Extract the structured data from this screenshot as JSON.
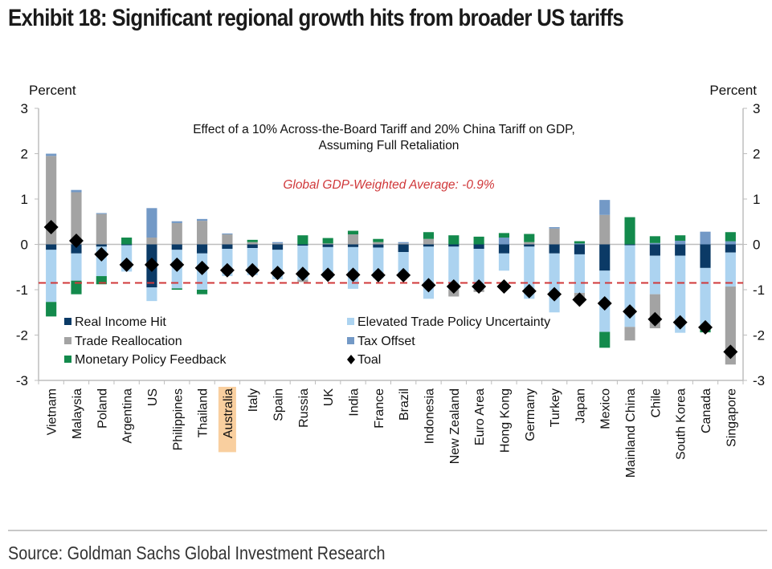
{
  "page": {
    "title": "Exhibit 18: Significant regional growth hits from broader US tariffs",
    "source": "Source: Goldman Sachs Global Investment Research"
  },
  "chart_data": {
    "type": "bar",
    "stacked": true,
    "title": "Effect of a 10% Across-the-Board Tariff and 20% China Tariff on GDP,",
    "subtitle": "Assuming Full Retaliation",
    "ylabel_left": "Percent",
    "ylabel_right": "Percent",
    "ylim": [
      -3,
      3
    ],
    "yticks": [
      3,
      2,
      1,
      0,
      -1,
      -2,
      -3
    ],
    "grid": false,
    "legend_placement": "bottom-left inside plot",
    "highlighted_category": "Australia",
    "highlight_color": "#f9cf9f",
    "reference_line": {
      "label": "Global GDP-Weighted Average: -0.9%",
      "value": -0.85,
      "color": "#d0383a"
    },
    "categories": [
      "Vietnam",
      "Malaysia",
      "Poland",
      "Argentina",
      "US",
      "Philippines",
      "Thailand",
      "Australia",
      "Italy",
      "Spain",
      "Russia",
      "UK",
      "India",
      "France",
      "Brazil",
      "Indonesia",
      "New Zealand",
      "Euro Area",
      "Hong Kong",
      "Germany",
      "Turkey",
      "Japan",
      "Mexico",
      "Mainland China",
      "Chile",
      "South Korea",
      "Canada",
      "Singapore"
    ],
    "series": [
      {
        "name": "Real Income Hit",
        "color": "#0b3a66",
        "marker": "square",
        "values": [
          -0.12,
          -0.2,
          -0.05,
          -0.02,
          -0.95,
          -0.12,
          -0.2,
          -0.1,
          -0.08,
          -0.12,
          -0.03,
          -0.06,
          -0.06,
          -0.07,
          -0.17,
          -0.05,
          -0.05,
          -0.1,
          -0.2,
          -0.05,
          -0.2,
          -0.22,
          -0.58,
          -0.02,
          -0.25,
          -0.25,
          -0.52,
          -0.18
        ]
      },
      {
        "name": "Elevated Trade Policy Uncertainty",
        "color": "#acd3f0",
        "marker": "square",
        "values": [
          -1.15,
          -0.6,
          -0.65,
          -0.58,
          -0.3,
          -0.85,
          -0.8,
          -0.6,
          -0.6,
          -0.65,
          -0.75,
          -0.68,
          -0.92,
          -0.68,
          -0.55,
          -1.15,
          -0.95,
          -0.9,
          -0.38,
          -1.15,
          -1.3,
          -0.85,
          -1.35,
          -1.8,
          -0.85,
          -1.7,
          -1.3,
          -0.75
        ]
      },
      {
        "name": "Trade Reallocation",
        "color": "#a3a3a3",
        "marker": "square",
        "values": [
          1.95,
          1.15,
          0.67,
          0.0,
          0.15,
          0.47,
          0.52,
          0.22,
          0.05,
          0.02,
          -0.05,
          0.02,
          0.22,
          0.05,
          0.02,
          0.12,
          -0.15,
          -0.05,
          0.0,
          0.05,
          0.35,
          -0.15,
          0.65,
          -0.3,
          -0.75,
          0.0,
          0.0,
          -1.72
        ]
      },
      {
        "name": "Tax Offset",
        "color": "#7399c6",
        "marker": "square",
        "values": [
          0.05,
          0.05,
          0.02,
          0.0,
          0.65,
          0.04,
          0.04,
          0.02,
          0.0,
          0.03,
          0.0,
          0.0,
          0.0,
          0.0,
          0.03,
          0.0,
          0.0,
          0.0,
          0.15,
          0.0,
          0.03,
          0.02,
          0.33,
          0.0,
          0.03,
          0.08,
          0.28,
          0.07
        ]
      },
      {
        "name": "Monetary Policy Feedback",
        "color": "#138a4c",
        "marker": "square",
        "values": [
          -0.32,
          -0.3,
          -0.18,
          0.15,
          0.0,
          -0.03,
          -0.1,
          0.0,
          0.05,
          0.0,
          0.2,
          0.12,
          0.08,
          0.07,
          0.0,
          0.15,
          0.2,
          0.17,
          0.1,
          0.18,
          0.0,
          0.05,
          -0.35,
          0.6,
          0.15,
          0.12,
          -0.12,
          0.2
        ]
      },
      {
        "name": "Toal",
        "color": "#000000",
        "marker": "diamond",
        "values": [
          0.38,
          0.08,
          -0.22,
          -0.45,
          -0.45,
          -0.45,
          -0.52,
          -0.57,
          -0.57,
          -0.63,
          -0.65,
          -0.67,
          -0.67,
          -0.68,
          -0.68,
          -0.9,
          -0.93,
          -0.93,
          -0.93,
          -1.03,
          -1.1,
          -1.22,
          -1.3,
          -1.48,
          -1.65,
          -1.72,
          -1.83,
          -2.37
        ]
      }
    ]
  }
}
